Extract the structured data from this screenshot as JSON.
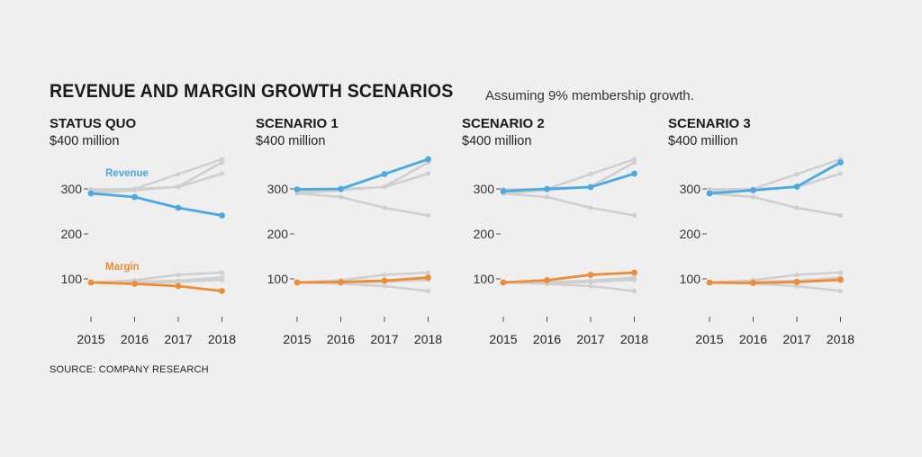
{
  "title": "REVENUE AND MARGIN GROWTH SCENARIOS",
  "subtitle": "Assuming 9% membership growth.",
  "source": "SOURCE: COMPANY RESEARCH",
  "colors": {
    "revenue": "#4aa8e4",
    "margin": "#ee8c36",
    "context": "#cfcfcf",
    "axis": "#555555"
  },
  "chart_data": [
    {
      "type": "line",
      "title": "STATUS QUO",
      "unit": "$400 million",
      "x": [
        "2015",
        "2016",
        "2017",
        "2018"
      ],
      "ylim": [
        60,
        400
      ],
      "yticks": [
        100,
        200,
        300
      ],
      "series": [
        {
          "name": "Revenue",
          "values": [
            290,
            282,
            258,
            241
          ]
        },
        {
          "name": "Margin",
          "values": [
            92,
            89,
            84,
            73
          ]
        }
      ],
      "series_labels": {
        "revenue": "Revenue",
        "margin": "Margin"
      }
    },
    {
      "type": "line",
      "title": "SCENARIO 1",
      "unit": "$400 million",
      "x": [
        "2015",
        "2016",
        "2017",
        "2018"
      ],
      "ylim": [
        60,
        400
      ],
      "yticks": [
        100,
        200,
        300
      ],
      "series": [
        {
          "name": "Revenue",
          "values": [
            299,
            300,
            333,
            366
          ]
        },
        {
          "name": "Margin",
          "values": [
            92,
            93,
            96,
            103
          ]
        }
      ]
    },
    {
      "type": "line",
      "title": "SCENARIO 2",
      "unit": "$400 million",
      "x": [
        "2015",
        "2016",
        "2017",
        "2018"
      ],
      "ylim": [
        60,
        400
      ],
      "yticks": [
        100,
        200,
        300
      ],
      "series": [
        {
          "name": "Revenue",
          "values": [
            295,
            300,
            304,
            334
          ]
        },
        {
          "name": "Margin",
          "values": [
            92,
            97,
            109,
            114
          ]
        }
      ]
    },
    {
      "type": "line",
      "title": "SCENARIO 3",
      "unit": "$400 million",
      "x": [
        "2015",
        "2016",
        "2017",
        "2018"
      ],
      "ylim": [
        60,
        400
      ],
      "yticks": [
        100,
        200,
        300
      ],
      "series": [
        {
          "name": "Revenue",
          "values": [
            290,
            297,
            305,
            359
          ]
        },
        {
          "name": "Margin",
          "values": [
            92,
            91,
            93,
            98
          ]
        }
      ]
    }
  ]
}
